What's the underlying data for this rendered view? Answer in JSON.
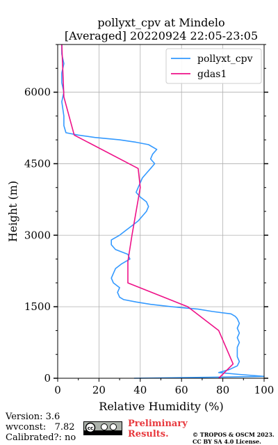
{
  "chart_data": {
    "type": "line",
    "title": "pollyxt_cpv at Mindelo\n[Averaged] 20220924 22:05-23:05",
    "title_line1": "pollyxt_cpv at Mindelo",
    "title_line2": "[Averaged] 20220924 22:05-23:05",
    "xlabel": "Relative Humidity (%)",
    "ylabel": "Height (m)",
    "xlim": [
      0,
      100
    ],
    "ylim": [
      0,
      7000
    ],
    "xticks": [
      "0",
      "20",
      "40",
      "60",
      "80",
      "100"
    ],
    "yticks": [
      "0",
      "1500",
      "3000",
      "4500",
      "6000"
    ],
    "grid": true,
    "legend_position": "top-right",
    "series": [
      {
        "name": "pollyxt_cpv",
        "color": "#3399ff",
        "points": [
          [
            37,
            0
          ],
          [
            55,
            10
          ],
          [
            80,
            25
          ],
          [
            100,
            40
          ],
          [
            88,
            80
          ],
          [
            78,
            120
          ],
          [
            83,
            180
          ],
          [
            87,
            260
          ],
          [
            88,
            350
          ],
          [
            87,
            450
          ],
          [
            87,
            550
          ],
          [
            87,
            650
          ],
          [
            88,
            750
          ],
          [
            87,
            850
          ],
          [
            88,
            950
          ],
          [
            87,
            1050
          ],
          [
            88,
            1150
          ],
          [
            87,
            1250
          ],
          [
            86,
            1300
          ],
          [
            84,
            1350
          ],
          [
            75,
            1400
          ],
          [
            68,
            1450
          ],
          [
            55,
            1500
          ],
          [
            45,
            1550
          ],
          [
            38,
            1600
          ],
          [
            32,
            1650
          ],
          [
            30,
            1700
          ],
          [
            29,
            1800
          ],
          [
            30,
            1900
          ],
          [
            27,
            2000
          ],
          [
            26,
            2100
          ],
          [
            27,
            2200
          ],
          [
            28,
            2300
          ],
          [
            31,
            2400
          ],
          [
            35,
            2500
          ],
          [
            34,
            2600
          ],
          [
            28,
            2700
          ],
          [
            26,
            2800
          ],
          [
            26,
            2900
          ],
          [
            30,
            3000
          ],
          [
            33,
            3100
          ],
          [
            36,
            3200
          ],
          [
            39,
            3300
          ],
          [
            41,
            3400
          ],
          [
            43,
            3500
          ],
          [
            44,
            3600
          ],
          [
            43,
            3700
          ],
          [
            40,
            3800
          ],
          [
            38,
            3900
          ],
          [
            39,
            4000
          ],
          [
            40,
            4100
          ],
          [
            41,
            4200
          ],
          [
            43,
            4300
          ],
          [
            45,
            4400
          ],
          [
            47,
            4500
          ],
          [
            45,
            4600
          ],
          [
            46,
            4700
          ],
          [
            48,
            4800
          ],
          [
            44,
            4900
          ],
          [
            38,
            4950
          ],
          [
            30,
            5000
          ],
          [
            18,
            5050
          ],
          [
            10,
            5100
          ],
          [
            4,
            5150
          ],
          [
            3,
            5300
          ],
          [
            3,
            5500
          ],
          [
            2,
            5800
          ],
          [
            3,
            6000
          ],
          [
            2,
            6200
          ],
          [
            2,
            6400
          ],
          [
            3,
            6600
          ],
          [
            2,
            6800
          ],
          [
            2,
            7000
          ]
        ]
      },
      {
        "name": "gdas1",
        "color": "#ee1188",
        "points": [
          [
            78,
            0
          ],
          [
            85,
            300
          ],
          [
            80,
            800
          ],
          [
            78,
            1000
          ],
          [
            63,
            1500
          ],
          [
            34,
            2000
          ],
          [
            34,
            2450
          ],
          [
            36,
            3000
          ],
          [
            40,
            4000
          ],
          [
            39,
            4400
          ],
          [
            8,
            5100
          ],
          [
            3,
            5900
          ],
          [
            2,
            7000
          ]
        ]
      }
    ]
  },
  "footer": {
    "version": "Version: 3.6",
    "wvconst": "wvconst:   7.82",
    "calibrated": "Calibrated?: no",
    "preliminary_line1": "Preliminary",
    "preliminary_line2": "Results.",
    "copyright_line1": "© TROPOS & OSCM 2023.",
    "copyright_line2": "CC BY SA 4.0 License."
  }
}
